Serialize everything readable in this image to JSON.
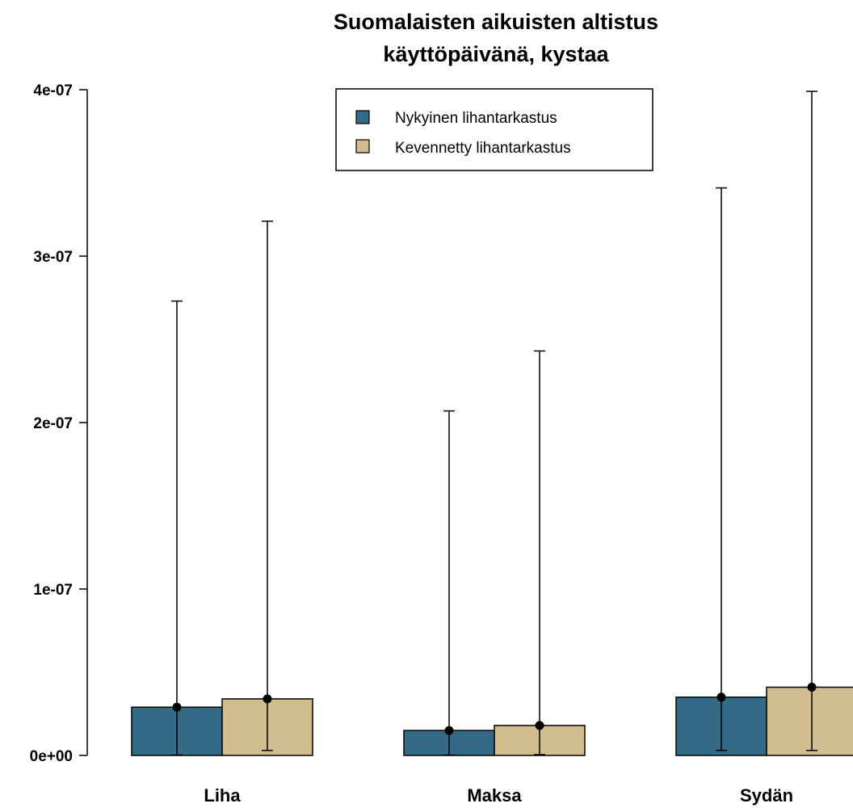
{
  "chart_data": {
    "type": "bar",
    "title": [
      "Suomalaisten aikuisten altistus",
      "käyttöpäivänä, kystaa"
    ],
    "xlabel": "",
    "ylabel": "",
    "categories": [
      "Liha",
      "Maksa",
      "Sydän"
    ],
    "ylim": [
      0,
      4e-07
    ],
    "yticks": [
      0,
      1e-07,
      2e-07,
      3e-07,
      4e-07
    ],
    "ytick_labels": [
      "0e+00",
      "1e-07",
      "2e-07",
      "3e-07",
      "4e-07"
    ],
    "legend_position": "top-center",
    "grid": false,
    "series": [
      {
        "name": "Nykyinen lihantarkastus",
        "color": "#336b87",
        "values": [
          2.9e-08,
          1.5e-08,
          3.5e-08
        ],
        "lower": [
          2e-10,
          2e-10,
          3e-09
        ],
        "upper": [
          2.73e-07,
          2.07e-07,
          3.41e-07
        ]
      },
      {
        "name": "Kevennetty lihantarkastus",
        "color": "#d0bc8c",
        "values": [
          3.4e-08,
          1.8e-08,
          4.1e-08
        ],
        "lower": [
          3e-09,
          5e-10,
          3e-09
        ],
        "upper": [
          3.21e-07,
          2.43e-07,
          3.99e-07
        ]
      }
    ]
  }
}
